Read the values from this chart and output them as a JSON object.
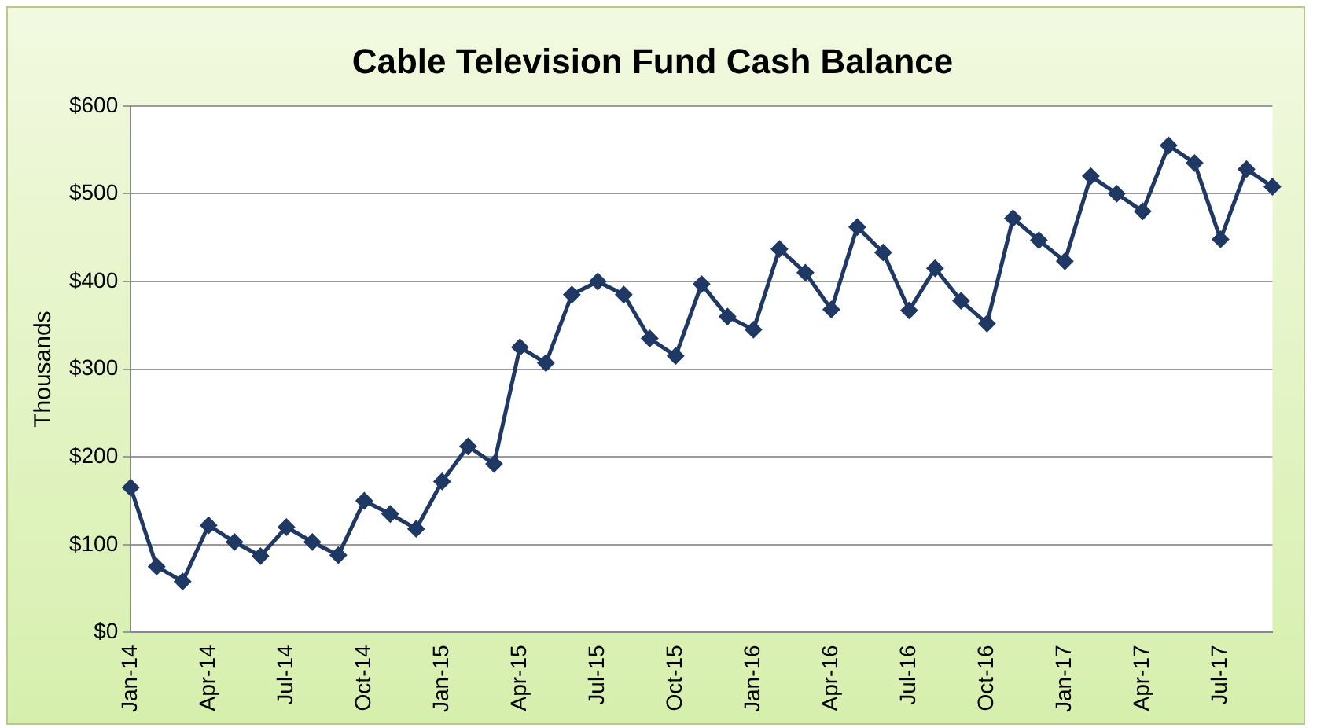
{
  "chart_data": {
    "type": "line",
    "title": "Cable Television Fund Cash Balance",
    "ylabel": "Thousands",
    "categories": [
      "Jan-14",
      null,
      null,
      "Apr-14",
      null,
      null,
      "Jul-14",
      null,
      null,
      "Oct-14",
      null,
      null,
      "Jan-15",
      null,
      null,
      "Apr-15",
      null,
      null,
      "Jul-15",
      null,
      null,
      "Oct-15",
      null,
      null,
      "Jan-16",
      null,
      null,
      "Apr-16",
      null,
      null,
      "Jul-16",
      null,
      null,
      "Oct-16",
      null,
      null,
      "Jan-17",
      null,
      null,
      "Apr-17",
      null,
      null,
      "Jul-17",
      null,
      null
    ],
    "series": [
      {
        "color": "#1f3864",
        "values": [
          165,
          75,
          58,
          122,
          103,
          87,
          120,
          103,
          88,
          150,
          135,
          118,
          172,
          212,
          192,
          325,
          307,
          385,
          400,
          385,
          335,
          315,
          397,
          360,
          345,
          437,
          410,
          368,
          462,
          433,
          367,
          415,
          378,
          352,
          472,
          447,
          423,
          520,
          500,
          480,
          555,
          535,
          448,
          528,
          508
        ]
      }
    ],
    "ylim": [
      0,
      600
    ],
    "yticks": [
      {
        "value": 0,
        "label": "$0"
      },
      {
        "value": 100,
        "label": "$100"
      },
      {
        "value": 200,
        "label": "$200"
      },
      {
        "value": 300,
        "label": "$300"
      },
      {
        "value": 400,
        "label": "$400"
      },
      {
        "value": 500,
        "label": "$500"
      },
      {
        "value": 600,
        "label": "$600"
      }
    ],
    "grid": "y",
    "legend": false,
    "marker": "diamond",
    "line_style": "solid"
  }
}
